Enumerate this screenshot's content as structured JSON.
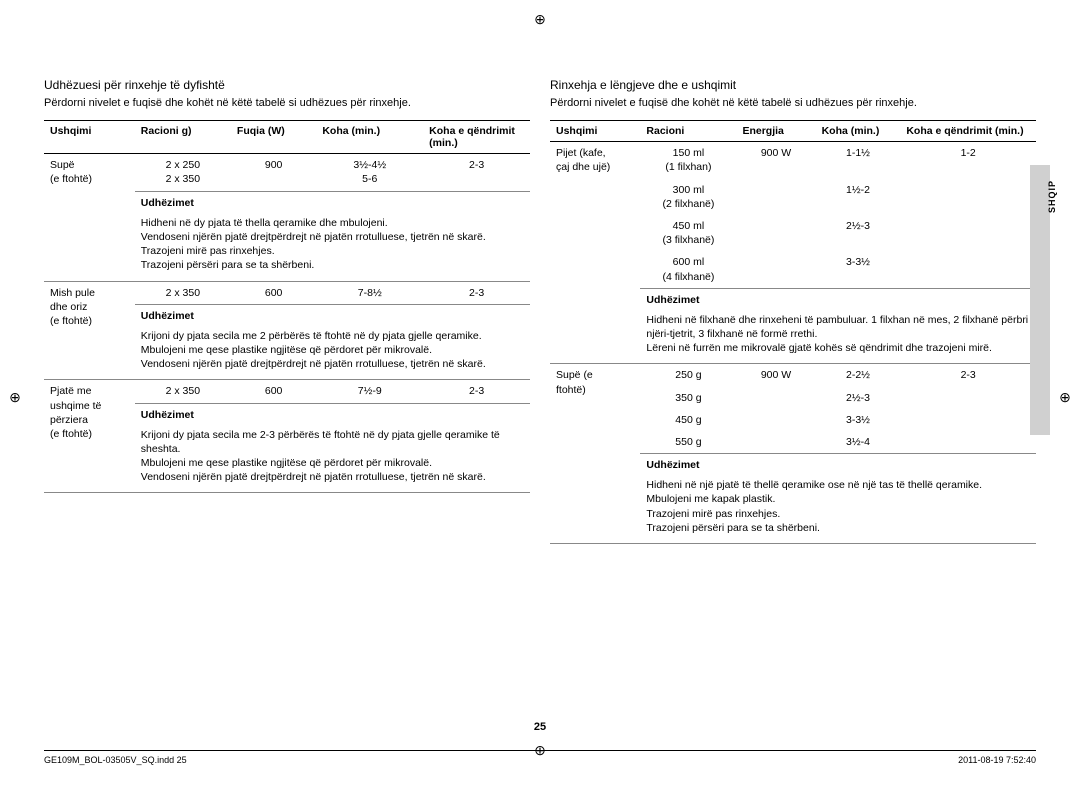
{
  "crop_glyph": "⊕",
  "page_number": "25",
  "side_tab": "SHQIP",
  "footer": {
    "file": "GE109M_BOL-03505V_SQ.indd   25",
    "date": "2011-08-19   7:52:40"
  },
  "left": {
    "title": "Udhëzuesi për rinxehje të dyfishtë",
    "intro": "Përdorni nivelet e fuqisë dhe kohët në këtë tabelë si udhëzues për rinxehje.",
    "headers": {
      "c1": "Ushqimi",
      "c2": "Racioni g)",
      "c3": "Fuqia (W)",
      "c4": "Koha (min.)",
      "c5": "Koha e qëndrimit (min.)"
    },
    "instr_label": "Udhëzimet",
    "rows": [
      {
        "food": "Supë\n(e ftohtë)",
        "portion": "2 x 250\n2 x 350",
        "power": "900",
        "time": "3½-4½\n5-6",
        "stand": "2-3",
        "instr": "Hidheni në dy pjata të thella qeramike dhe mbulojeni.\nVendoseni njërën pjatë drejtpërdrejt në pjatën rrotulluese, tjetrën në skarë.\nTrazojeni mirë pas rinxehjes.\nTrazojeni përsëri para se ta shërbeni."
      },
      {
        "food": "Mish pule\ndhe oriz\n(e ftohtë)",
        "portion": "2 x 350",
        "power": "600",
        "time": "7-8½",
        "stand": "2-3",
        "instr": "Krijoni dy pjata secila me 2 përbërës të ftohtë në dy pjata gjelle qeramike.\nMbulojeni me qese plastike ngjitëse që përdoret për mikrovalë.\nVendoseni njërën pjatë drejtpërdrejt në pjatën rrotulluese, tjetrën në skarë."
      },
      {
        "food": "Pjatë me\nushqime të\npërziera\n(e ftohtë)",
        "portion": "2 x 350",
        "power": "600",
        "time": "7½-9",
        "stand": "2-3",
        "instr": "Krijoni dy pjata secila me 2-3 përbërës të ftohtë në dy pjata gjelle qeramike të sheshta.\nMbulojeni me qese plastike ngjitëse që përdoret për mikrovalë.\nVendoseni njërën pjatë drejtpërdrejt në pjatën rrotulluese, tjetrën në skarë."
      }
    ]
  },
  "right": {
    "title": "Rinxehja e lëngjeve dhe e ushqimit",
    "intro": "Përdorni nivelet e fuqisë dhe kohët në këtë tabelë si udhëzues për rinxehje.",
    "headers": {
      "c1": "Ushqimi",
      "c2": "Racioni",
      "c3": "Energjia",
      "c4": "Koha (min.)",
      "c5": "Koha e qëndrimit (min.)"
    },
    "instr_label": "Udhëzimet",
    "rows": [
      {
        "food": "Pijet (kafe,\nçaj dhe ujë)",
        "sub": [
          {
            "portion": "150 ml\n(1 filxhan)",
            "power": "900 W",
            "time": "1-1½",
            "stand": "1-2"
          },
          {
            "portion": "300 ml\n(2 filxhanë)",
            "power": "",
            "time": "1½-2",
            "stand": ""
          },
          {
            "portion": "450 ml\n(3 filxhanë)",
            "power": "",
            "time": "2½-3",
            "stand": ""
          },
          {
            "portion": "600 ml\n(4 filxhanë)",
            "power": "",
            "time": "3-3½",
            "stand": ""
          }
        ],
        "instr": "Hidheni në filxhanë dhe rinxeheni të pambuluar. 1 filxhan në mes, 2 filxhanë përbri njëri-tjetrit, 3 filxhanë në formë rrethi.\nLëreni në furrën me mikrovalë gjatë kohës së qëndrimit dhe trazojeni mirë."
      },
      {
        "food": "Supë (e\nftohtë)",
        "sub": [
          {
            "portion": "250 g",
            "power": "900 W",
            "time": "2-2½",
            "stand": "2-3"
          },
          {
            "portion": "350 g",
            "power": "",
            "time": "2½-3",
            "stand": ""
          },
          {
            "portion": "450 g",
            "power": "",
            "time": "3-3½",
            "stand": ""
          },
          {
            "portion": "550 g",
            "power": "",
            "time": "3½-4",
            "stand": ""
          }
        ],
        "instr": "Hidheni në një pjatë të thellë qeramike ose në një tas të thellë qeramike.\nMbulojeni me kapak plastik.\nTrazojeni mirë pas rinxehjes.\nTrazojeni përsëri para se ta shërbeni."
      }
    ]
  }
}
